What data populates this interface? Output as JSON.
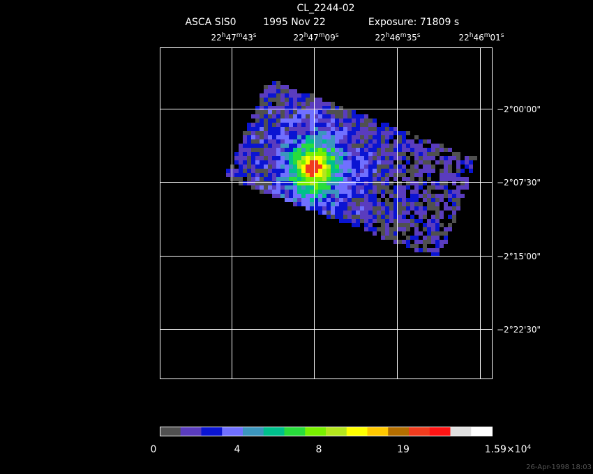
{
  "header": {
    "title": "CL_2244-02",
    "instrument": "ASCA SIS0",
    "date": "1995 Nov 22",
    "exposure": "Exposure: 71809 s"
  },
  "ra_labels": [
    [
      "22",
      "h",
      "47",
      "m",
      "43",
      "s"
    ],
    [
      "22",
      "h",
      "47",
      "m",
      "09",
      "s"
    ],
    [
      "22",
      "h",
      "46",
      "m",
      "35",
      "s"
    ],
    [
      "22",
      "h",
      "46",
      "m",
      "01",
      "s"
    ]
  ],
  "dec_labels": [
    "−2°00'00\"",
    "−2°07'30\"",
    "−2°15'00\"",
    "−2°22'30\""
  ],
  "colorbar": {
    "colors": [
      "#505050",
      "#5a3cbe",
      "#0a14d2",
      "#7070ff",
      "#3c96be",
      "#00c08c",
      "#28dc3c",
      "#78f000",
      "#b4e61e",
      "#ffff00",
      "#ffc800",
      "#b46e00",
      "#f03c1e",
      "#ff1414",
      "#e0e0e0",
      "#ffffff"
    ],
    "labels": [
      [
        "0"
      ],
      [
        "4"
      ],
      [
        "8"
      ],
      [
        "19"
      ],
      [
        "1.59×10",
        "4"
      ]
    ]
  },
  "timestamp": "26-Apr-1998 18:03"
}
